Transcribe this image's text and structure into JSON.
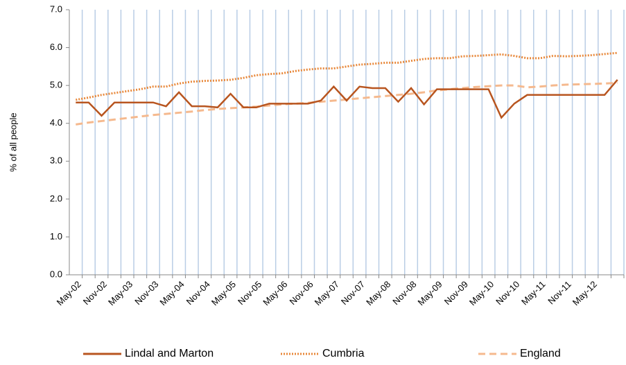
{
  "chart_data": {
    "type": "line",
    "y_label": "% of all people",
    "categories": [
      "May-02",
      null,
      "Nov-02",
      null,
      "May-03",
      null,
      "Nov-03",
      null,
      "May-04",
      null,
      "Nov-04",
      null,
      "May-05",
      null,
      "Nov-05",
      null,
      "May-06",
      null,
      "Nov-06",
      null,
      "May-07",
      null,
      "Nov-07",
      null,
      "May-08",
      null,
      "Nov-08",
      null,
      "May-09",
      null,
      "Nov-09",
      null,
      "May-10",
      null,
      "Nov-10",
      null,
      "May-11",
      null,
      "Nov-11",
      null,
      "May-12",
      null,
      null
    ],
    "series": [
      {
        "name": "Lindal and Marton",
        "color": "#b8551f",
        "dash": "solid",
        "values": [
          4.55,
          4.55,
          4.2,
          4.55,
          4.55,
          4.55,
          4.55,
          4.45,
          4.82,
          4.45,
          4.45,
          4.42,
          4.78,
          4.42,
          4.42,
          4.52,
          4.52,
          4.52,
          4.52,
          4.6,
          4.97,
          4.6,
          4.97,
          4.93,
          4.93,
          4.57,
          4.93,
          4.5,
          4.9,
          4.9,
          4.9,
          4.9,
          4.9,
          4.15,
          4.52,
          4.75,
          4.75,
          4.75,
          4.75,
          4.75,
          4.75,
          4.75,
          5.15
        ]
      },
      {
        "name": "Cumbria",
        "color": "#e8883a",
        "dash": "dotted",
        "values": [
          4.62,
          4.68,
          4.75,
          4.8,
          4.85,
          4.9,
          4.97,
          4.97,
          5.05,
          5.1,
          5.12,
          5.13,
          5.15,
          5.2,
          5.27,
          5.3,
          5.32,
          5.38,
          5.42,
          5.45,
          5.45,
          5.5,
          5.55,
          5.57,
          5.6,
          5.6,
          5.65,
          5.7,
          5.72,
          5.72,
          5.77,
          5.78,
          5.8,
          5.82,
          5.78,
          5.72,
          5.72,
          5.78,
          5.77,
          5.78,
          5.8,
          5.83,
          5.86
        ]
      },
      {
        "name": "England",
        "color": "#f5b98e",
        "dash": "dashed",
        "values": [
          3.97,
          4.02,
          4.06,
          4.1,
          4.14,
          4.18,
          4.22,
          4.25,
          4.28,
          4.31,
          4.35,
          4.38,
          4.4,
          4.42,
          4.44,
          4.47,
          4.5,
          4.52,
          4.54,
          4.57,
          4.6,
          4.63,
          4.66,
          4.69,
          4.72,
          4.75,
          4.78,
          4.82,
          4.87,
          4.9,
          4.93,
          4.96,
          4.98,
          5.0,
          5.0,
          4.95,
          4.97,
          5.0,
          5.02,
          5.03,
          5.04,
          5.05,
          5.07
        ]
      }
    ],
    "ylim": [
      0,
      7
    ],
    "yticks": [
      {
        "value": 0,
        "label": "0.0"
      },
      {
        "value": 1,
        "label": "1.0"
      },
      {
        "value": 2,
        "label": "2.0"
      },
      {
        "value": 3,
        "label": "3.0"
      },
      {
        "value": 4,
        "label": "4.0"
      },
      {
        "value": 5,
        "label": "5.0"
      },
      {
        "value": 6,
        "label": "6.0"
      },
      {
        "value": 7,
        "label": "7.0"
      }
    ],
    "vertical_grid": true,
    "grid_color": "#b9cde5",
    "legend": "bottom"
  }
}
